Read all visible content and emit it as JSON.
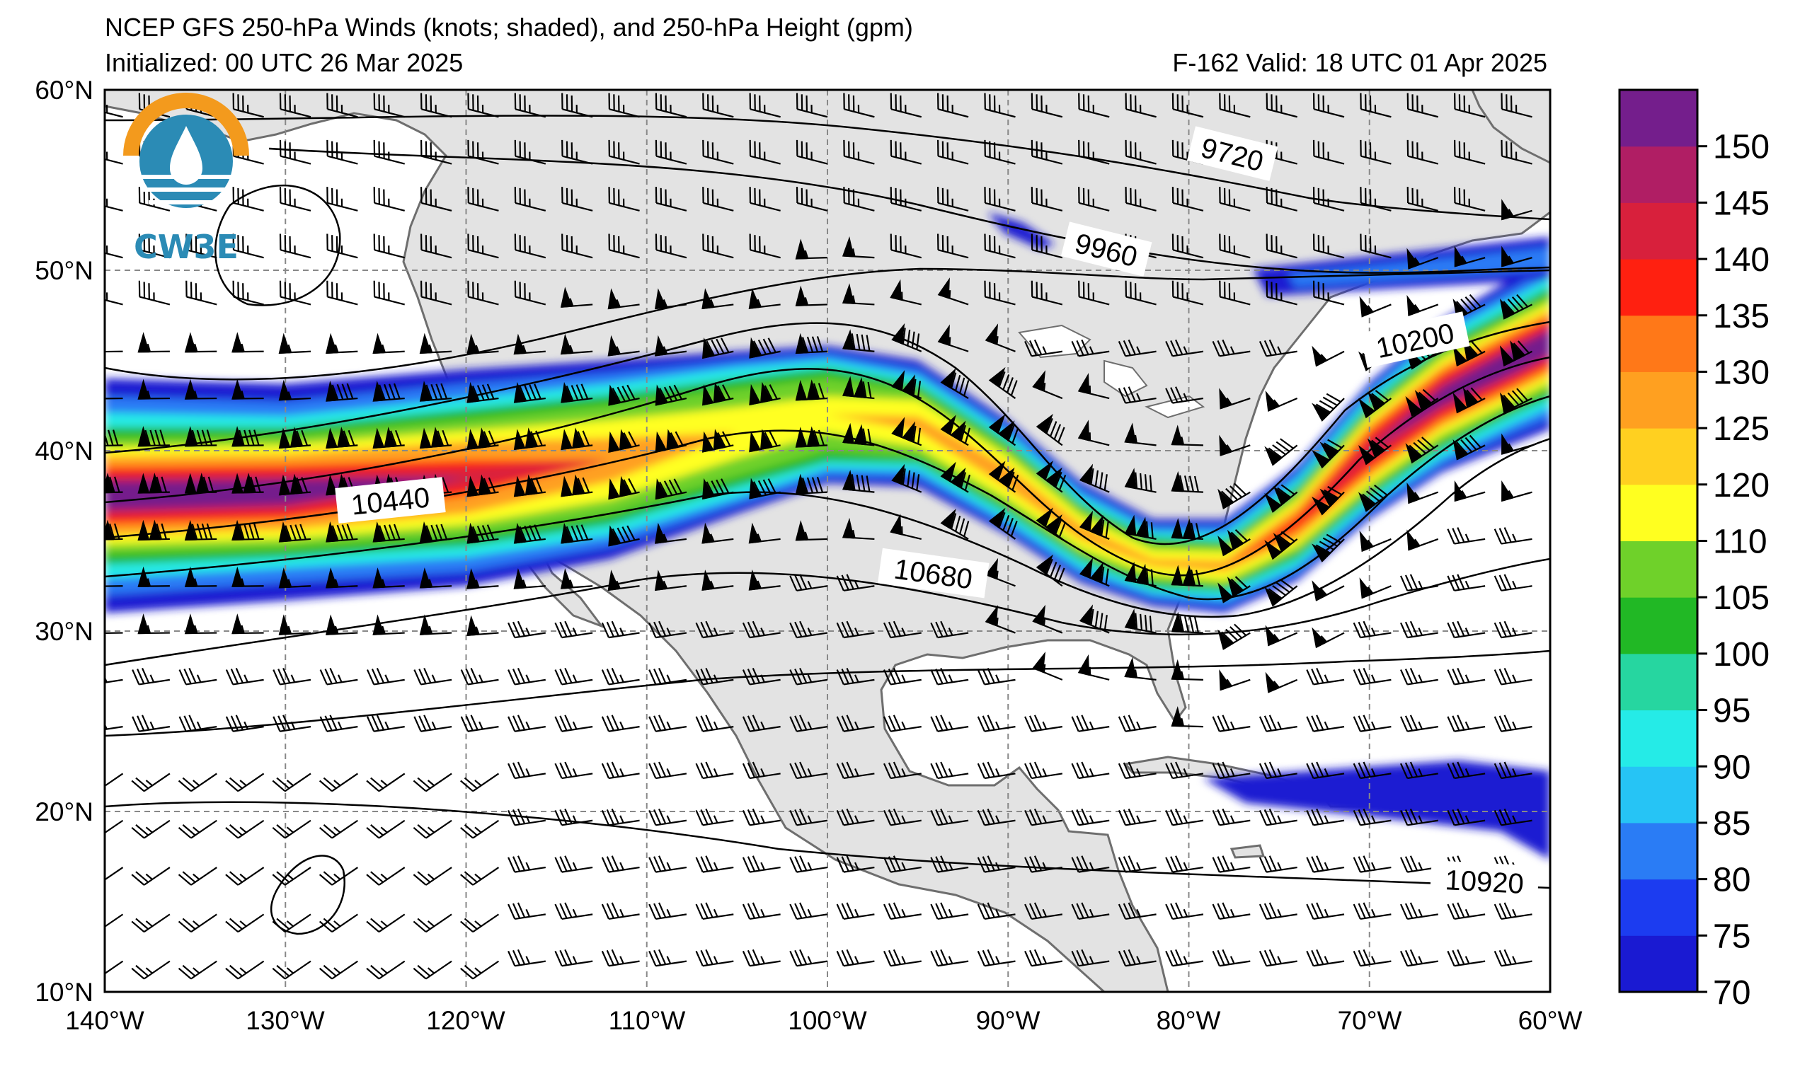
{
  "header": {
    "title": "NCEP GFS 250-hPa Winds (knots; shaded), and 250-hPa Height (gpm)",
    "initialized": "Initialized: 00 UTC 26 Mar 2025",
    "valid": "F-162  Valid: 18 UTC 01 Apr 2025"
  },
  "logo": {
    "text": "CW3E"
  },
  "map": {
    "projection": "cylindrical",
    "lon_range": [
      -140,
      -60
    ],
    "lat_range": [
      10,
      60
    ],
    "lon_labels": [
      "140°W",
      "130°W",
      "120°W",
      "110°W",
      "100°W",
      "90°W",
      "80°W",
      "70°W",
      "60°W"
    ],
    "lat_labels": [
      "60°N",
      "50°N",
      "40°N",
      "30°N",
      "20°N",
      "10°N"
    ],
    "land_color": "#e3e3e3",
    "ocean_color": "#ffffff",
    "gridlines": "dashed"
  },
  "height_contours": {
    "units": "gpm",
    "labels": [
      "9720",
      "9960",
      "10200",
      "10440",
      "10680",
      "10920"
    ]
  },
  "colorbar": {
    "units": "knots",
    "levels": [
      "150",
      "145",
      "140",
      "135",
      "130",
      "125",
      "120",
      "110",
      "105",
      "100",
      "95",
      "90",
      "85",
      "80",
      "75",
      "70"
    ],
    "colors": [
      "#1a1ad2",
      "#1c3cf0",
      "#2a7cf5",
      "#26c4f5",
      "#25ebe7",
      "#26d6a0",
      "#21b825",
      "#6fd12a",
      "#ffff20",
      "#ffd020",
      "#ffa020",
      "#ff7818",
      "#ff2010",
      "#d8203c",
      "#b01e64",
      "#741e8c"
    ]
  }
}
